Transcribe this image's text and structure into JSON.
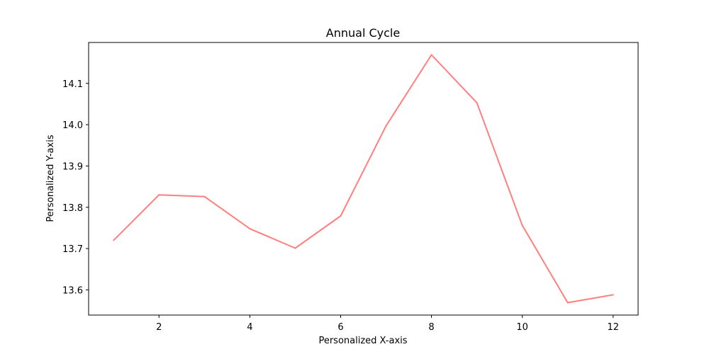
{
  "chart_data": {
    "type": "line",
    "title": "Annual Cycle",
    "xlabel": "Personalized X-axis",
    "ylabel": "Personalized Y-axis",
    "x": [
      1,
      2,
      3,
      4,
      5,
      6,
      7,
      8,
      9,
      10,
      11,
      12
    ],
    "series": [
      {
        "values": [
          13.72,
          13.83,
          13.826,
          13.748,
          13.701,
          13.779,
          13.997,
          14.169,
          14.053,
          13.756,
          13.569,
          13.588
        ],
        "color": "#ff7f7f"
      }
    ],
    "xlim": [
      0.45,
      12.55
    ],
    "ylim": [
      13.539,
      14.199
    ],
    "xticks": [
      2,
      4,
      6,
      8,
      10,
      12
    ],
    "yticks": [
      13.6,
      13.7,
      13.8,
      13.9,
      14.0,
      14.1
    ],
    "xtick_labels": [
      "2",
      "4",
      "6",
      "8",
      "10",
      "12"
    ],
    "ytick_labels": [
      "13.6",
      "13.7",
      "13.8",
      "13.9",
      "14.0",
      "14.1"
    ],
    "grid": false,
    "legend": "none"
  }
}
